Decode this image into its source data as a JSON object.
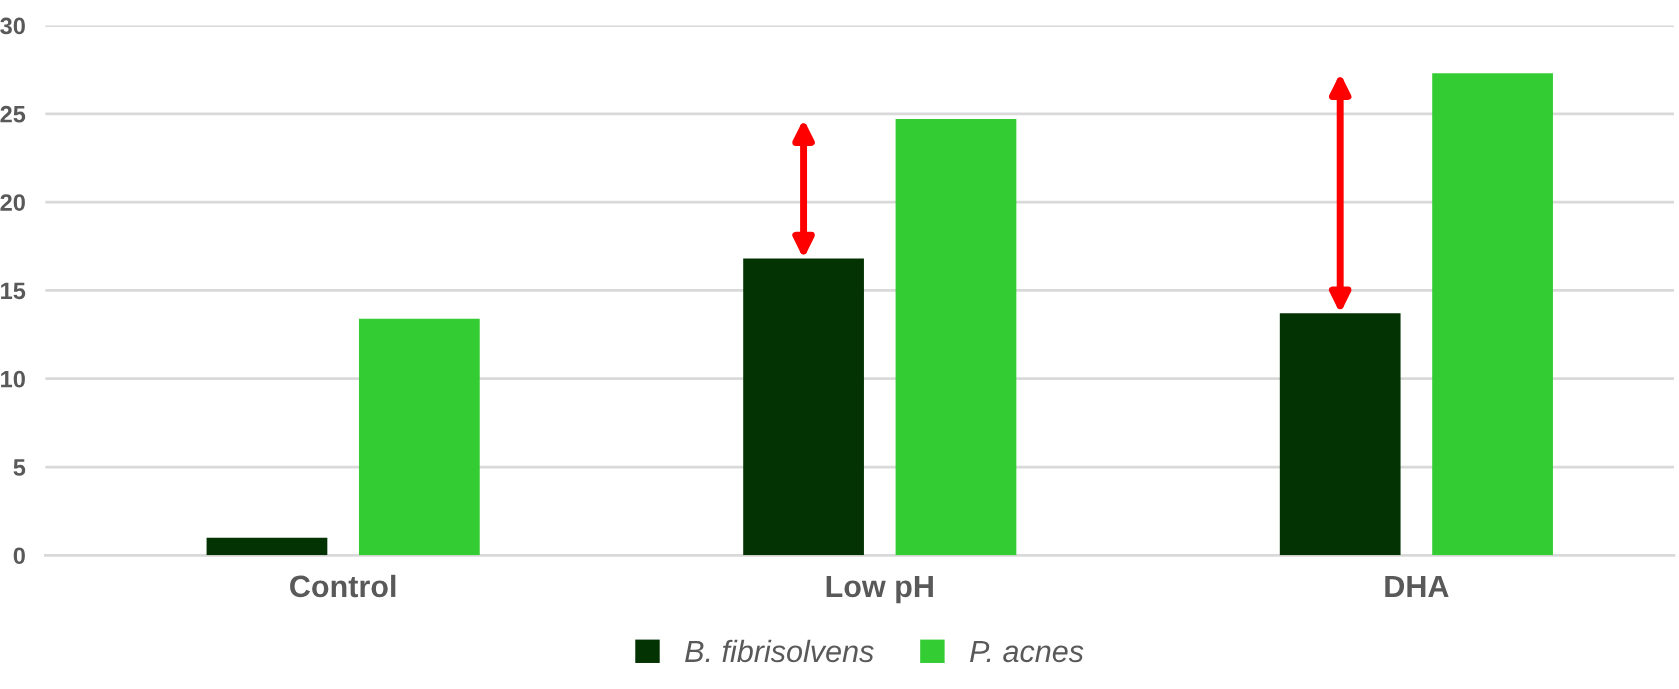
{
  "chart_data": {
    "type": "bar",
    "categories": [
      "Control",
      "Low pH",
      "DHA"
    ],
    "series": [
      {
        "name": "B. fibrisolvens",
        "color": "#033203",
        "values": [
          1.0,
          16.8,
          13.7
        ]
      },
      {
        "name": "P. acnes",
        "color": "#33cc33",
        "values": [
          13.4,
          24.7,
          27.3
        ]
      }
    ],
    "ylim": [
      0,
      30
    ],
    "yticks": [
      0,
      5,
      10,
      15,
      20,
      25,
      30
    ],
    "grid": "y",
    "legend": "bottom"
  }
}
